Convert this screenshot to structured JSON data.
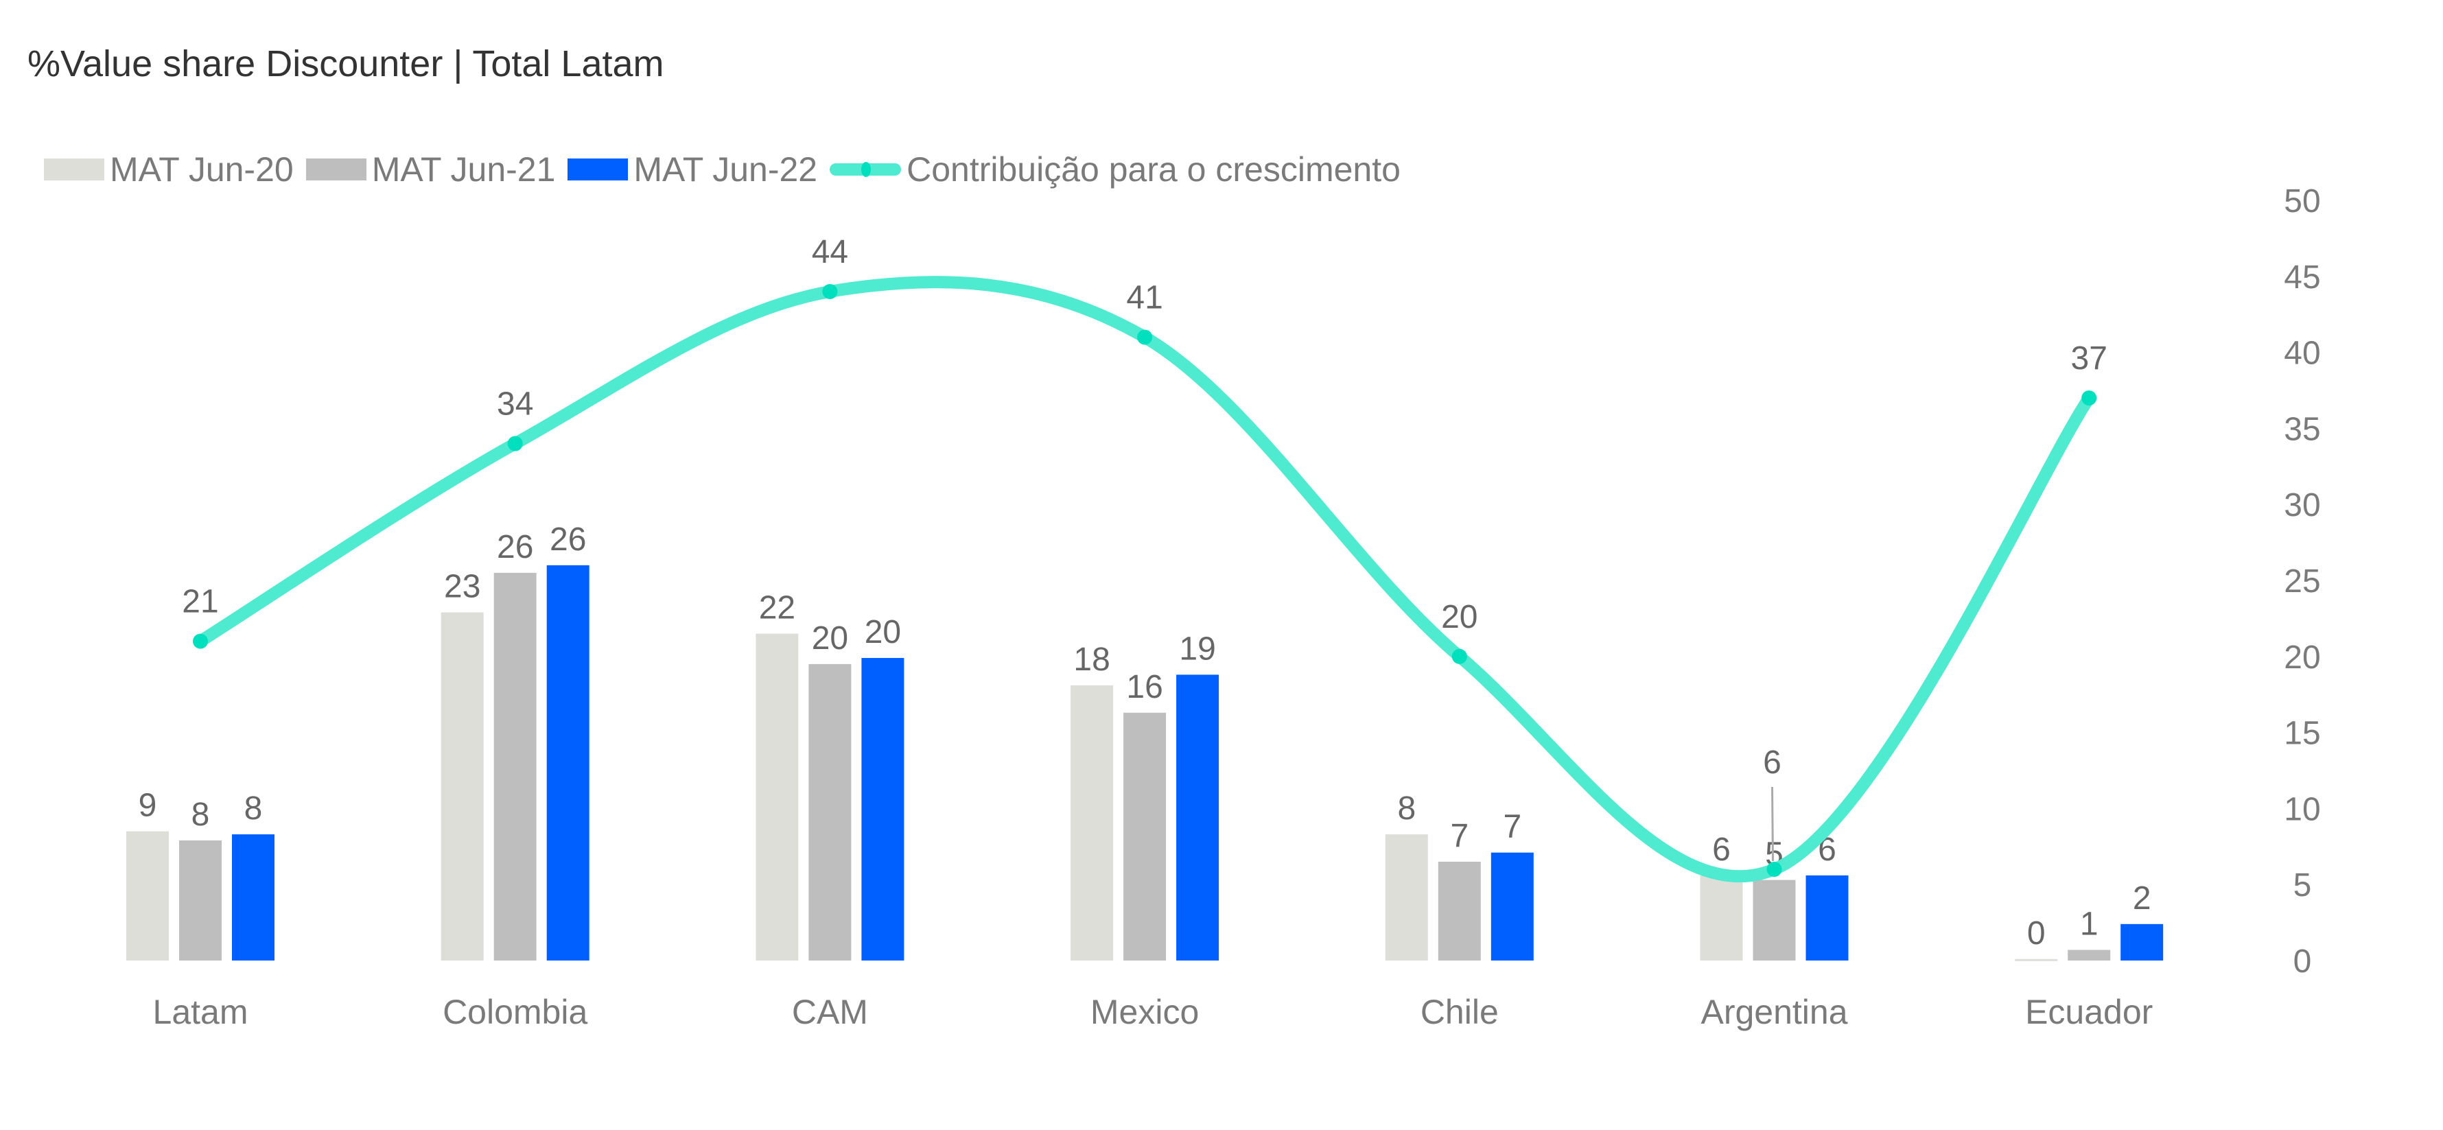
{
  "chart_data": {
    "type": "bar+line",
    "title": "%Value share Discounter | Total  Latam",
    "categories": [
      "Latam",
      "Colombia",
      "CAM",
      "Mexico",
      "Chile",
      "Argentina",
      "Ecuador"
    ],
    "series": [
      {
        "name": "MAT Jun-20",
        "type": "bar",
        "color": "#DEDED9",
        "values": [
          8.5,
          22.9,
          21.5,
          18.1,
          8.3,
          5.6,
          0.1
        ],
        "labels": [
          "9",
          "23",
          "22",
          "18",
          "8",
          "6",
          "0"
        ]
      },
      {
        "name": "MAT Jun-21",
        "type": "bar",
        "color": "#BEBEBE",
        "values": [
          7.9,
          25.5,
          19.5,
          16.3,
          6.5,
          5.3,
          0.7
        ],
        "labels": [
          "8",
          "26",
          "20",
          "16",
          "7",
          "5",
          "1"
        ]
      },
      {
        "name": "MAT Jun-22",
        "type": "bar",
        "color": "#0060FF",
        "values": [
          8.3,
          26.0,
          19.9,
          18.8,
          7.1,
          5.6,
          2.4
        ],
        "labels": [
          "8",
          "26",
          "20",
          "19",
          "7",
          "6",
          "2"
        ]
      },
      {
        "name": "Contribuição para o crescimento",
        "type": "line",
        "smooth": true,
        "color": "#4EEBD0",
        "marker_color": "#00E0BE",
        "values": [
          21,
          34,
          44,
          41,
          20,
          6,
          37
        ],
        "labels": [
          "21",
          "34",
          "44",
          "41",
          "20",
          "6",
          "37"
        ]
      }
    ],
    "y_axis": {
      "position": "right",
      "range": [
        0,
        50
      ],
      "ticks": [
        "0",
        "5",
        "10",
        "15",
        "20",
        "25",
        "30",
        "35",
        "40",
        "45",
        "50"
      ]
    },
    "grid": false,
    "legend": "top-left"
  }
}
